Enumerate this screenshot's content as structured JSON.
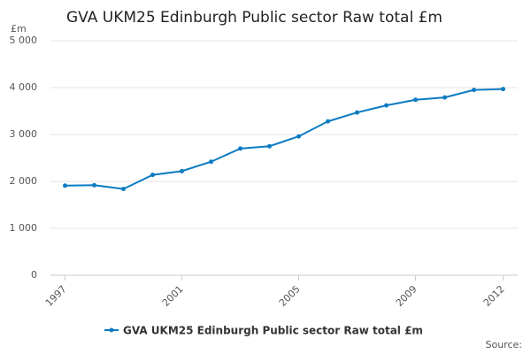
{
  "chart_data": {
    "type": "line",
    "title": "GVA UKM25 Edinburgh Public sector Raw total £m",
    "y_unit": "£m",
    "source": "Source:",
    "x": [
      1997,
      1998,
      1999,
      2000,
      2001,
      2002,
      2003,
      2004,
      2005,
      2006,
      2007,
      2008,
      2009,
      2010,
      2011,
      2012
    ],
    "series": [
      {
        "name": "GVA UKM25 Edinburgh Public sector Raw total £m",
        "color": "#0b7bc1",
        "values": [
          1910,
          1920,
          1840,
          2140,
          2220,
          2420,
          2700,
          2750,
          2960,
          3280,
          3470,
          3620,
          3740,
          3790,
          3950,
          3970
        ]
      }
    ],
    "xlim": [
      1996.5,
      2012.5
    ],
    "xticks": [
      1997,
      2001,
      2005,
      2009,
      2012
    ],
    "ylim": [
      0,
      5000
    ],
    "yticks": [
      0,
      {
        "value": 1000,
        "label": "1 000"
      },
      {
        "value": 2000,
        "label": "2 000"
      },
      {
        "value": 3000,
        "label": "3 000"
      },
      {
        "value": 4000,
        "label": "4 000"
      },
      {
        "value": 5000,
        "label": "5 000"
      }
    ],
    "grid": true
  }
}
